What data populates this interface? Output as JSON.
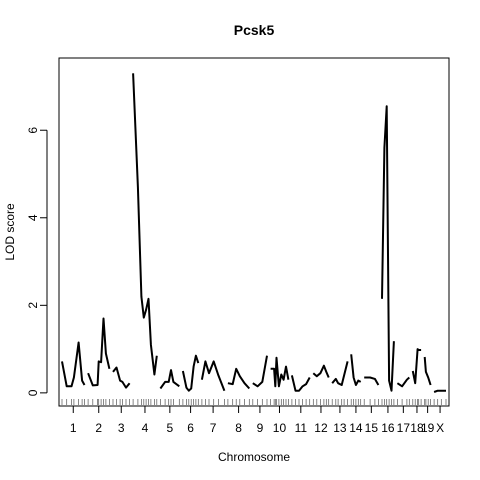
{
  "chart_data": {
    "type": "line",
    "title": "Pcsk5",
    "xlabel": "Chromosome",
    "ylabel": "LOD score",
    "ylim": [
      -0.3,
      7.65
    ],
    "yticks": [
      0,
      2,
      4,
      6
    ],
    "grid": false,
    "legend": "none",
    "line_color": "#000000",
    "chromosomes": [
      {
        "name": "1",
        "markers": [
          0,
          4,
          8,
          10,
          14,
          17,
          19
        ],
        "lod": [
          0.72,
          0.15,
          0.15,
          0.35,
          1.15,
          0.28,
          0.18
        ]
      },
      {
        "name": "2",
        "markers": [
          0,
          4,
          8,
          9,
          11,
          13,
          15,
          18
        ],
        "lod": [
          0.45,
          0.17,
          0.18,
          0.72,
          0.7,
          1.7,
          0.9,
          0.55
        ]
      },
      {
        "name": "3",
        "markers": [
          0,
          3,
          6,
          8,
          11,
          14
        ],
        "lod": [
          0.48,
          0.58,
          0.28,
          0.25,
          0.12,
          0.22
        ]
      },
      {
        "name": "4",
        "markers": [
          0,
          4,
          7,
          9,
          11,
          13,
          15,
          18,
          20
        ],
        "lod": [
          7.3,
          4.7,
          2.2,
          1.72,
          1.9,
          2.15,
          1.1,
          0.42,
          0.85
        ]
      },
      {
        "name": "5",
        "markers": [
          0,
          4,
          7,
          9,
          11,
          16
        ],
        "lod": [
          0.1,
          0.25,
          0.25,
          0.52,
          0.25,
          0.15
        ]
      },
      {
        "name": "6",
        "markers": [
          0,
          3,
          5,
          7,
          9,
          11,
          13
        ],
        "lod": [
          0.5,
          0.12,
          0.05,
          0.1,
          0.6,
          0.85,
          0.68
        ]
      },
      {
        "name": "7",
        "markers": [
          0,
          3,
          6,
          10,
          14,
          19
        ],
        "lod": [
          0.3,
          0.72,
          0.45,
          0.72,
          0.4,
          0.05
        ]
      },
      {
        "name": "8",
        "markers": [
          0,
          4,
          7,
          10,
          14,
          18
        ],
        "lod": [
          0.22,
          0.2,
          0.55,
          0.38,
          0.22,
          0.1
        ]
      },
      {
        "name": "9",
        "markers": [
          0,
          4,
          8,
          12
        ],
        "lod": [
          0.22,
          0.15,
          0.25,
          0.85
        ]
      },
      {
        "name": "10",
        "markers": [
          0,
          3,
          4,
          5,
          7,
          9,
          11,
          13,
          15
        ],
        "lod": [
          0.55,
          0.55,
          0.15,
          0.8,
          0.15,
          0.42,
          0.3,
          0.6,
          0.3
        ]
      },
      {
        "name": "11",
        "markers": [
          0,
          3,
          6,
          9,
          12,
          15
        ],
        "lod": [
          0.4,
          0.05,
          0.05,
          0.15,
          0.2,
          0.35
        ]
      },
      {
        "name": "12",
        "markers": [
          0,
          3,
          6,
          9,
          11,
          13
        ],
        "lod": [
          0.45,
          0.38,
          0.45,
          0.62,
          0.48,
          0.35
        ]
      },
      {
        "name": "13",
        "markers": [
          0,
          3,
          5,
          8,
          10,
          13
        ],
        "lod": [
          0.22,
          0.32,
          0.22,
          0.18,
          0.4,
          0.72
        ]
      },
      {
        "name": "14",
        "markers": [
          0,
          2,
          4,
          6,
          8
        ],
        "lod": [
          0.88,
          0.35,
          0.18,
          0.28,
          0.25
        ]
      },
      {
        "name": "15",
        "markers": [
          0,
          5,
          9,
          12
        ],
        "lod": [
          0.35,
          0.35,
          0.32,
          0.18
        ]
      },
      {
        "name": "16",
        "markers": [
          0,
          2,
          4,
          6,
          8,
          10
        ],
        "lod": [
          2.15,
          5.6,
          6.55,
          0.28,
          0.05,
          1.18
        ]
      },
      {
        "name": "17",
        "markers": [
          0,
          4,
          8,
          10
        ],
        "lod": [
          0.22,
          0.15,
          0.3,
          0.35
        ]
      },
      {
        "name": "18",
        "markers": [
          0,
          2,
          4,
          5,
          7
        ],
        "lod": [
          0.5,
          0.22,
          1.0,
          0.98,
          0.98
        ]
      },
      {
        "name": "19",
        "markers": [
          0,
          1,
          3,
          5
        ],
        "lod": [
          0.82,
          0.48,
          0.35,
          0.18
        ]
      },
      {
        "name": "X",
        "markers": [
          0,
          3,
          6,
          10
        ],
        "lod": [
          0.02,
          0.05,
          0.05,
          0.05
        ]
      }
    ]
  }
}
